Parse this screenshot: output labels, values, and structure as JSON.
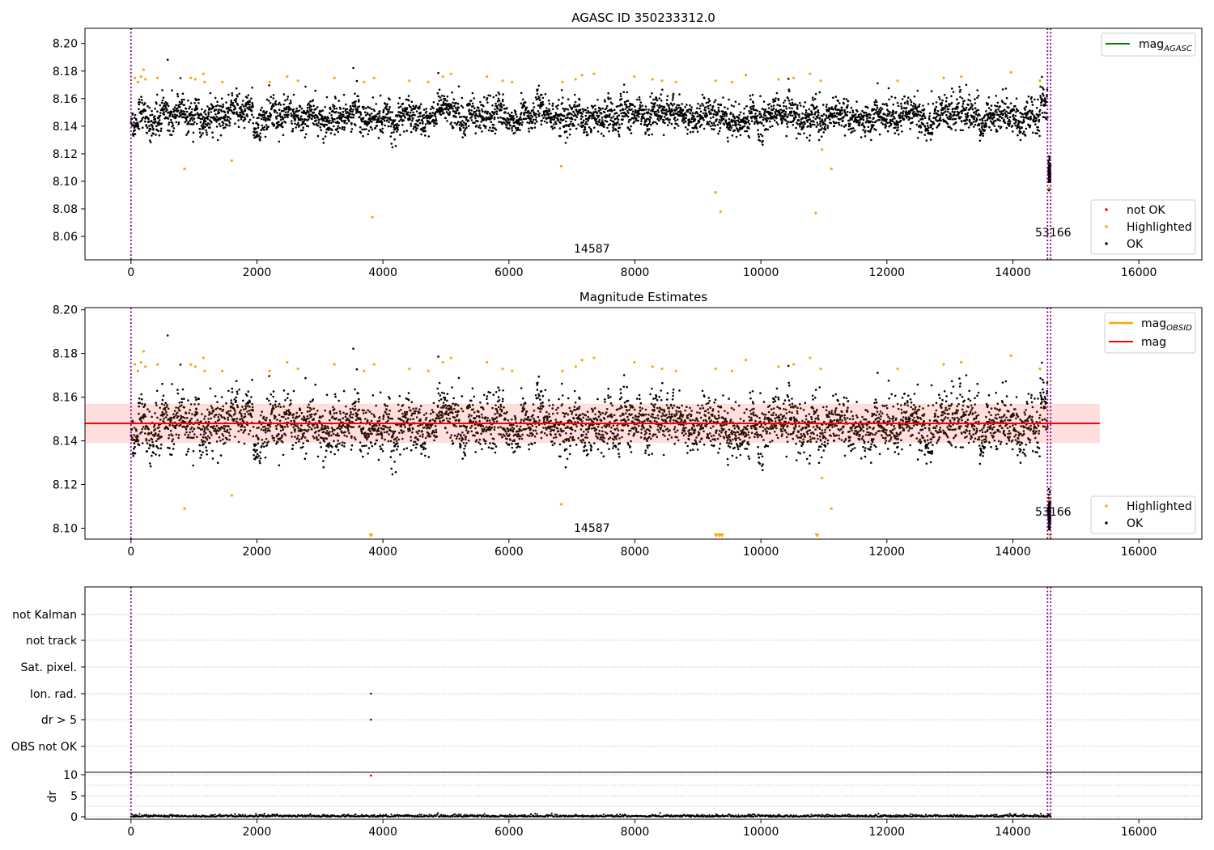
{
  "chart_data": [
    {
      "type": "scatter",
      "title": "AGASC ID 350233312.0",
      "xlim": [
        -730,
        17000
      ],
      "ylim": [
        8.043,
        8.211
      ],
      "xticks": [
        "0",
        "2000",
        "4000",
        "6000",
        "8000",
        "10000",
        "12000",
        "14000",
        "16000"
      ],
      "yticks": [
        "8.06",
        "8.08",
        "8.10",
        "8.12",
        "8.14",
        "8.16",
        "8.18",
        "8.20"
      ],
      "vlines": [
        0,
        14550,
        14600
      ],
      "annotations": [
        {
          "text": "14587",
          "x": 7000,
          "y": 8.052
        },
        {
          "text": "53166",
          "x": 14800,
          "y": 8.062
        }
      ],
      "band": {
        "mean": 8.147,
        "spread": 0.009
      },
      "ok_segments": [
        {
          "x0": 0,
          "x1": 14550,
          "n": 4200
        },
        {
          "x0": 14560,
          "x1": 14600,
          "n": 120,
          "center": 8.107,
          "spread": 0.006
        }
      ],
      "highlighted": [
        [
          60,
          8.175
        ],
        [
          110,
          8.172
        ],
        [
          160,
          8.176
        ],
        [
          200,
          8.181
        ],
        [
          230,
          8.174
        ],
        [
          420,
          8.175
        ],
        [
          950,
          8.175
        ],
        [
          1020,
          8.174
        ],
        [
          1150,
          8.178
        ],
        [
          1170,
          8.172
        ],
        [
          1450,
          8.172
        ],
        [
          2200,
          8.172
        ],
        [
          2480,
          8.176
        ],
        [
          2650,
          8.173
        ],
        [
          3230,
          8.175
        ],
        [
          3700,
          8.172
        ],
        [
          3860,
          8.175
        ],
        [
          4420,
          8.173
        ],
        [
          4720,
          8.172
        ],
        [
          4950,
          8.176
        ],
        [
          5080,
          8.178
        ],
        [
          5650,
          8.176
        ],
        [
          5900,
          8.173
        ],
        [
          6050,
          8.172
        ],
        [
          6850,
          8.172
        ],
        [
          7060,
          8.174
        ],
        [
          7160,
          8.177
        ],
        [
          7350,
          8.178
        ],
        [
          7990,
          8.176
        ],
        [
          8280,
          8.174
        ],
        [
          8430,
          8.173
        ],
        [
          8650,
          8.172
        ],
        [
          9280,
          8.173
        ],
        [
          9540,
          8.172
        ],
        [
          9760,
          8.177
        ],
        [
          10280,
          8.174
        ],
        [
          10520,
          8.175
        ],
        [
          10780,
          8.178
        ],
        [
          10950,
          8.173
        ],
        [
          12170,
          8.173
        ],
        [
          12900,
          8.175
        ],
        [
          13180,
          8.176
        ],
        [
          13970,
          8.179
        ],
        [
          14430,
          8.173
        ],
        [
          850,
          8.109
        ],
        [
          1600,
          8.115
        ],
        [
          3830,
          8.074
        ],
        [
          6830,
          8.111
        ],
        [
          9280,
          8.092
        ],
        [
          9360,
          8.078
        ],
        [
          10870,
          8.077
        ],
        [
          10970,
          8.123
        ],
        [
          11120,
          8.109
        ],
        [
          14580,
          8.095
        ]
      ],
      "not_ok": [],
      "legend_lines": [
        {
          "label": "mag",
          "sub": "AGASC",
          "color": "#008000"
        }
      ],
      "legend_points": [
        {
          "label": "not OK",
          "color": "#ff0000"
        },
        {
          "label": "Highlighted",
          "color": "#ffa500"
        },
        {
          "label": "OK",
          "color": "#000000"
        }
      ]
    },
    {
      "type": "scatter",
      "title": "Magnitude Estimates",
      "xlim": [
        -730,
        17000
      ],
      "ylim": [
        8.095,
        8.201
      ],
      "xticks": [
        "0",
        "2000",
        "4000",
        "6000",
        "8000",
        "10000",
        "12000",
        "14000",
        "16000"
      ],
      "yticks": [
        "8.10",
        "8.12",
        "8.14",
        "8.16",
        "8.18",
        "8.20"
      ],
      "vlines": [
        0,
        14550,
        14600
      ],
      "annotations": [
        {
          "text": "14587",
          "x": 7000,
          "y": 8.099
        },
        {
          "text": "53166",
          "x": 14800,
          "y": 8.106
        }
      ],
      "mag": 8.148,
      "mag_band": [
        8.139,
        8.157
      ],
      "mag_x_range": [
        -730,
        15380
      ],
      "down_markers": [
        3810,
        9290,
        9340,
        9380,
        10890,
        14590
      ],
      "highlighted": [
        [
          60,
          8.175
        ],
        [
          110,
          8.172
        ],
        [
          160,
          8.176
        ],
        [
          200,
          8.181
        ],
        [
          230,
          8.174
        ],
        [
          420,
          8.175
        ],
        [
          950,
          8.175
        ],
        [
          1020,
          8.174
        ],
        [
          1150,
          8.178
        ],
        [
          1170,
          8.172
        ],
        [
          1450,
          8.172
        ],
        [
          2200,
          8.172
        ],
        [
          2480,
          8.176
        ],
        [
          2650,
          8.173
        ],
        [
          3230,
          8.175
        ],
        [
          3700,
          8.172
        ],
        [
          3860,
          8.175
        ],
        [
          4420,
          8.173
        ],
        [
          4720,
          8.172
        ],
        [
          4950,
          8.176
        ],
        [
          5080,
          8.178
        ],
        [
          5650,
          8.176
        ],
        [
          5900,
          8.173
        ],
        [
          6050,
          8.172
        ],
        [
          6850,
          8.172
        ],
        [
          7060,
          8.174
        ],
        [
          7160,
          8.177
        ],
        [
          7350,
          8.178
        ],
        [
          7990,
          8.176
        ],
        [
          8280,
          8.174
        ],
        [
          8430,
          8.173
        ],
        [
          8650,
          8.172
        ],
        [
          9280,
          8.173
        ],
        [
          9540,
          8.172
        ],
        [
          9760,
          8.177
        ],
        [
          10280,
          8.174
        ],
        [
          10520,
          8.175
        ],
        [
          10780,
          8.178
        ],
        [
          10950,
          8.173
        ],
        [
          12170,
          8.173
        ],
        [
          12900,
          8.175
        ],
        [
          13180,
          8.176
        ],
        [
          13970,
          8.179
        ],
        [
          14430,
          8.173
        ],
        [
          850,
          8.109
        ],
        [
          1600,
          8.115
        ],
        [
          6830,
          8.111
        ],
        [
          10970,
          8.123
        ],
        [
          11120,
          8.109
        ],
        [
          14580,
          8.113
        ]
      ],
      "legend_lines": [
        {
          "label": "mag",
          "sub": "OBSID",
          "color": "#ffa500"
        },
        {
          "label": "mag",
          "sub": "",
          "color": "#ff0000"
        }
      ],
      "legend_points": [
        {
          "label": "Highlighted",
          "color": "#ffa500"
        },
        {
          "label": "OK",
          "color": "#000000"
        }
      ]
    },
    {
      "type": "scatter",
      "xlim": [
        -730,
        17000
      ],
      "xticks": [
        "0",
        "2000",
        "4000",
        "6000",
        "8000",
        "10000",
        "12000",
        "14000",
        "16000"
      ],
      "flag_labels": [
        "not Kalman",
        "not track",
        "Sat. pixel.",
        "Ion. rad.",
        "dr > 5",
        "OBS not OK"
      ],
      "flag_points": [
        {
          "flag": "Ion. rad.",
          "x": 3810
        },
        {
          "flag": "dr > 5",
          "x": 3810
        }
      ],
      "dr": {
        "ylabel": "dr",
        "ylim": [
          -0.5,
          10.5
        ],
        "yticks": [
          "0",
          "5",
          "10"
        ],
        "outliers": [
          [
            3810,
            9.8
          ]
        ],
        "x_range": [
          0,
          14600
        ]
      },
      "vlines": [
        0,
        14550,
        14600
      ]
    }
  ]
}
